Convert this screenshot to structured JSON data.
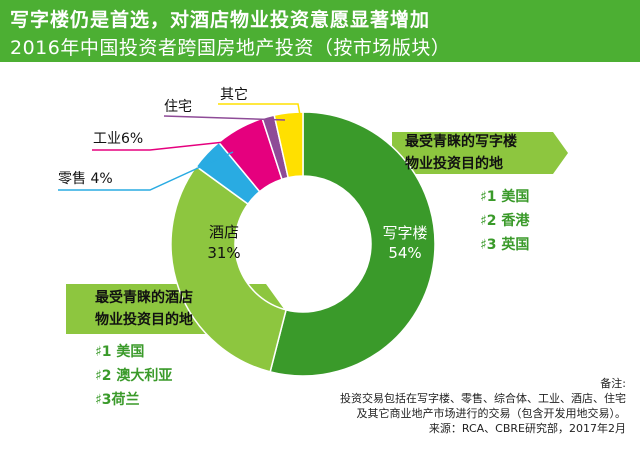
{
  "header": {
    "title_line1": "写字楼仍是首选，对酒店物业投资意愿显著增加",
    "title_line2": "2016年中国投资者跨国房地产投资（按市场版块）"
  },
  "colors": {
    "header_bg": "#4caf33",
    "office": "#3a9a2a",
    "hotel": "#8dc63f",
    "retail": "#29abe2",
    "industrial": "#e5007e",
    "residential": "#8e4b97",
    "other": "#ffe000",
    "callout_bg": "#8dc63f",
    "rank_text": "#3a9a2a"
  },
  "chart_data": {
    "type": "pie",
    "style": "donut",
    "slices": [
      {
        "name": "写字楼",
        "value": 54,
        "value_label": "54%",
        "color": "#3a9a2a"
      },
      {
        "name": "酒店",
        "value": 31,
        "value_label": "31%",
        "color": "#8dc63f"
      },
      {
        "name": "零售",
        "value": 4,
        "value_label": "4%",
        "color": "#29abe2"
      },
      {
        "name": "工业",
        "value": 6,
        "value_label": "6%",
        "color": "#e5007e"
      },
      {
        "name": "住宅",
        "value": 1.5,
        "value_label": "",
        "color": "#8e4b97"
      },
      {
        "name": "其它",
        "value": 3.5,
        "value_label": "",
        "color": "#ffe000"
      }
    ]
  },
  "labels": {
    "office": "写字楼",
    "office_pct": "54%",
    "hotel": "酒店",
    "hotel_pct": "31%",
    "retail": "零售  4%",
    "industrial": "工业6%",
    "residential": "住宅",
    "other": "其它"
  },
  "office_callout": {
    "title_line1": "最受青睐的写字楼",
    "title_line2": "物业投资目的地",
    "ranks": [
      "♯1 美国",
      "♯2 香港",
      "♯3 英国"
    ]
  },
  "hotel_callout": {
    "title_line1": "最受青睐的酒店",
    "title_line2": "物业投资目的地",
    "ranks": [
      "♯1 美国",
      "♯2 澳大利亚",
      "♯3荷兰"
    ]
  },
  "notes": {
    "line1": "备注:",
    "line2": "投资交易包括在写字楼、零售、综合体、工业、酒店、住宅",
    "line3": "及其它商业地产市场进行的交易（包含开发用地交易）。",
    "line4": "来源：RCA、CBRE研究部，2017年2月"
  }
}
